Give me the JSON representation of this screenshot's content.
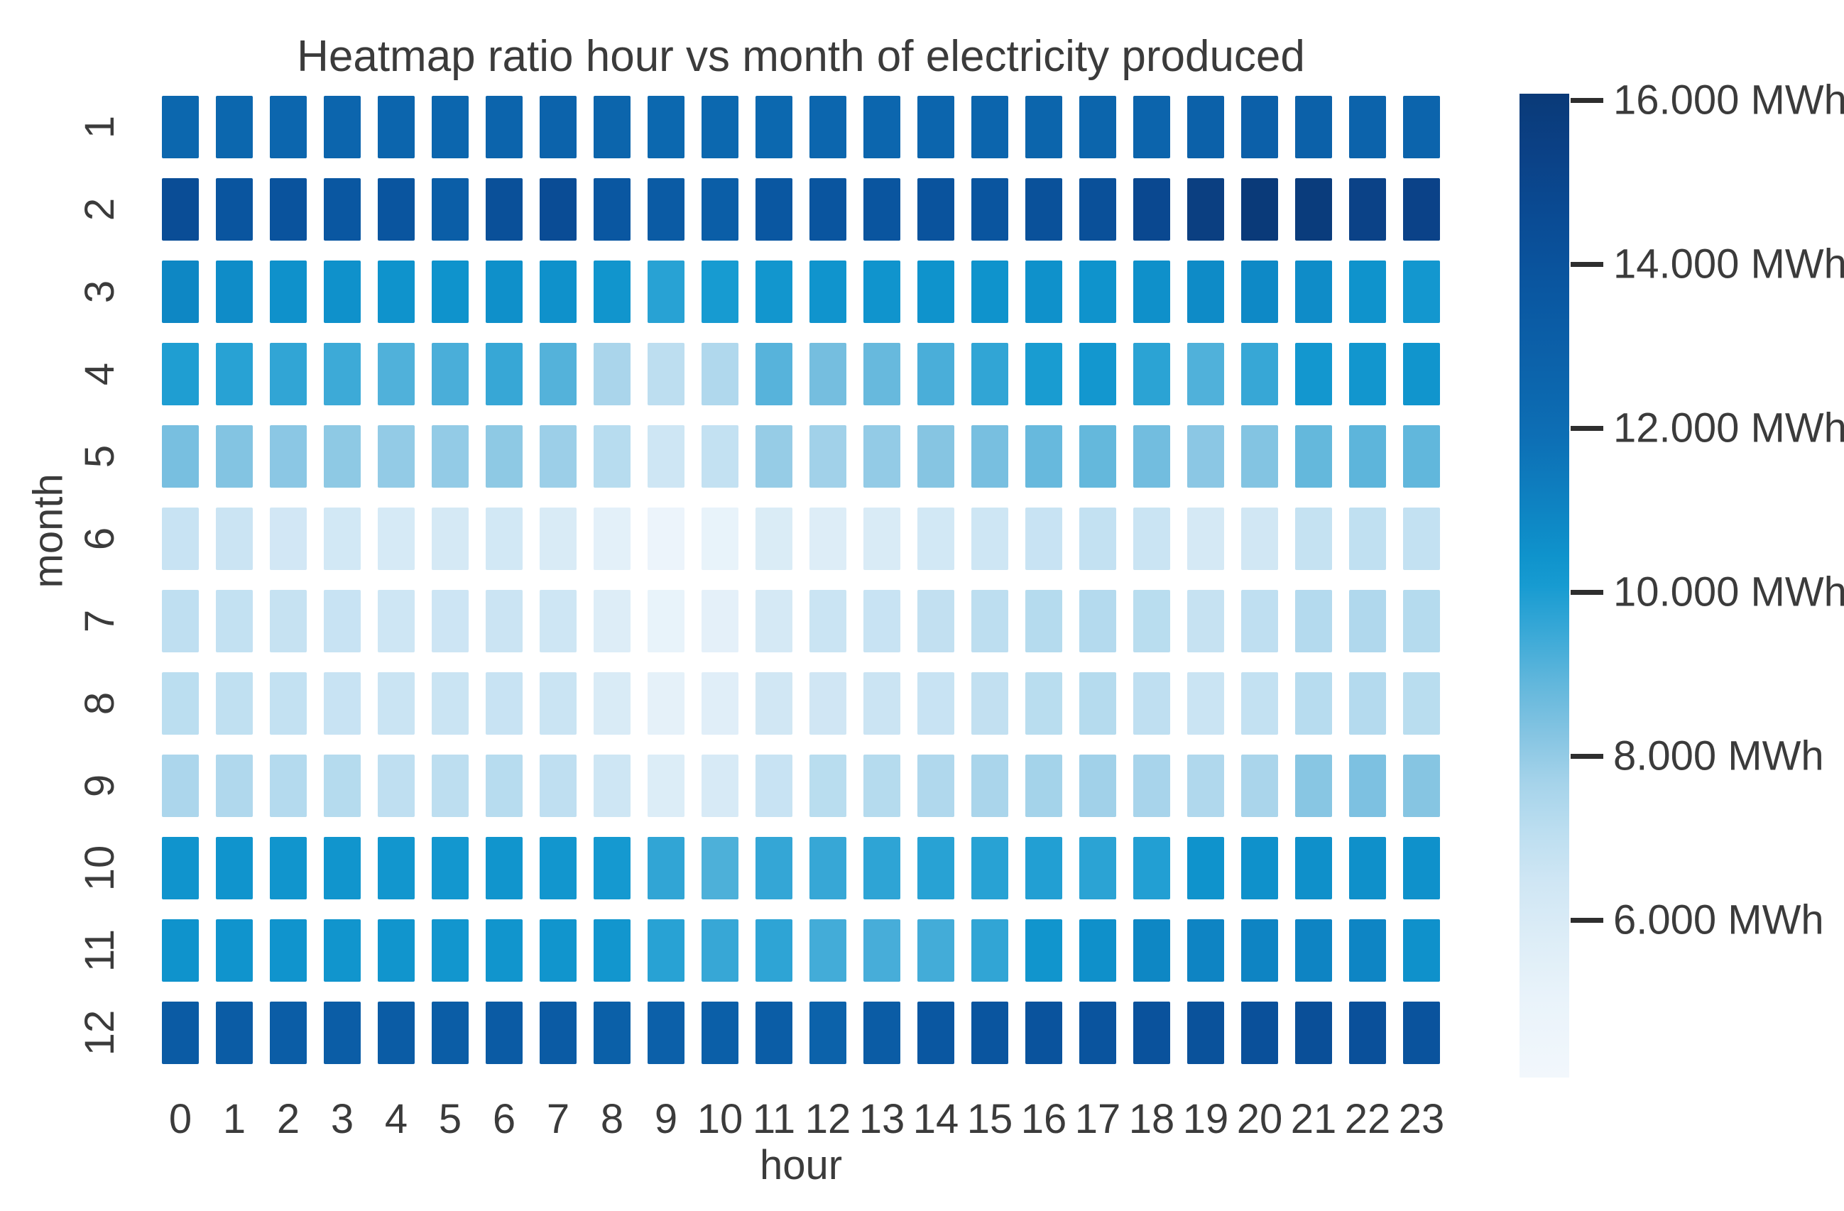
{
  "title": "Heatmap ratio hour vs month of electricity produced",
  "axes": {
    "x_label": "hour",
    "y_label": "month",
    "x_ticks": [
      "0",
      "1",
      "2",
      "3",
      "4",
      "5",
      "6",
      "7",
      "8",
      "9",
      "10",
      "11",
      "12",
      "13",
      "14",
      "15",
      "16",
      "17",
      "18",
      "19",
      "20",
      "21",
      "22",
      "23"
    ],
    "y_ticks": [
      "1",
      "2",
      "3",
      "4",
      "5",
      "6",
      "7",
      "8",
      "9",
      "10",
      "11",
      "12"
    ]
  },
  "colorbar": {
    "unit": "MWh",
    "tick_labels": [
      "16.000 MWh",
      "14.000 MWh",
      "12.000 MWh",
      "10.000 MWh",
      "8.000 MWh",
      "6.000 MWh"
    ],
    "tick_values": [
      16000,
      14000,
      12000,
      10000,
      8000,
      6000
    ],
    "vmin": 4080,
    "vmax": 16080,
    "colormap_stops": [
      [
        0.0,
        "#0a3a78"
      ],
      [
        0.06,
        "#0b4186"
      ],
      [
        0.13,
        "#0a4c95"
      ],
      [
        0.2,
        "#0a57a1"
      ],
      [
        0.28,
        "#0c63ab"
      ],
      [
        0.35,
        "#0d6fb5"
      ],
      [
        0.42,
        "#0e83c2"
      ],
      [
        0.47,
        "#0f93cc"
      ],
      [
        0.5,
        "#179bd1"
      ],
      [
        0.55,
        "#3ba9d7"
      ],
      [
        0.6,
        "#62b7dc"
      ],
      [
        0.65,
        "#84c4e2"
      ],
      [
        0.7,
        "#a5d3ea"
      ],
      [
        0.75,
        "#bcdef0"
      ],
      [
        0.8,
        "#cfe6f4"
      ],
      [
        0.86,
        "#ddedf7"
      ],
      [
        0.92,
        "#e9f3fa"
      ],
      [
        1.0,
        "#f2f7fc"
      ]
    ]
  },
  "chart_data": {
    "type": "heatmap",
    "title": "Heatmap ratio hour vs month of electricity produced",
    "xlabel": "hour",
    "ylabel": "month",
    "x": [
      0,
      1,
      2,
      3,
      4,
      5,
      6,
      7,
      8,
      9,
      10,
      11,
      12,
      13,
      14,
      15,
      16,
      17,
      18,
      19,
      20,
      21,
      22,
      23
    ],
    "y": [
      1,
      2,
      3,
      4,
      5,
      6,
      7,
      8,
      9,
      10,
      11,
      12
    ],
    "unit": "MWh",
    "legend_position": "right-colorbar",
    "value_range": [
      4080,
      16080
    ],
    "values": [
      [
        12450,
        12450,
        12500,
        12550,
        12550,
        12500,
        12650,
        12700,
        12600,
        12400,
        12350,
        12400,
        12500,
        12500,
        12550,
        12550,
        12600,
        12600,
        12650,
        12900,
        12950,
        12900,
        12700,
        12650
      ],
      [
        14450,
        13800,
        13950,
        13700,
        13850,
        13150,
        14250,
        14500,
        13650,
        13350,
        13100,
        13650,
        13850,
        13800,
        13950,
        13850,
        14150,
        14250,
        14800,
        15600,
        16050,
        15850,
        15300,
        15250
      ],
      [
        10900,
        10700,
        10500,
        10500,
        10450,
        10450,
        10550,
        10500,
        10350,
        9800,
        10100,
        10300,
        10400,
        10400,
        10450,
        10450,
        10500,
        10450,
        10550,
        10750,
        10800,
        10700,
        10450,
        10250
      ],
      [
        9950,
        9800,
        9650,
        9450,
        9150,
        9250,
        9550,
        9100,
        7550,
        7050,
        7400,
        9050,
        8550,
        8800,
        9250,
        9650,
        10050,
        10250,
        9750,
        9150,
        9550,
        10250,
        10300,
        10350
      ],
      [
        8500,
        8300,
        8150,
        8100,
        8000,
        8000,
        8100,
        7850,
        7200,
        6500,
        6850,
        7950,
        7750,
        8000,
        8250,
        8500,
        8800,
        8850,
        8600,
        8150,
        8300,
        8850,
        8950,
        8900
      ],
      [
        6700,
        6600,
        6350,
        6300,
        6100,
        6150,
        6300,
        5950,
        5400,
        4750,
        5100,
        5900,
        5750,
        5950,
        6300,
        6500,
        6700,
        6850,
        6650,
        6150,
        6400,
        6800,
        6950,
        6850
      ],
      [
        7000,
        6850,
        6750,
        6700,
        6500,
        6550,
        6600,
        6500,
        5750,
        5100,
        5350,
        6150,
        6650,
        6700,
        6900,
        7050,
        7250,
        7300,
        7150,
        6750,
        7000,
        7300,
        7400,
        7250
      ],
      [
        7100,
        6950,
        6850,
        6700,
        6650,
        6650,
        6700,
        6650,
        5950,
        5300,
        5600,
        6400,
        6450,
        6600,
        6700,
        6900,
        7150,
        7250,
        7000,
        6650,
        6850,
        7200,
        7300,
        7150
      ],
      [
        7500,
        7400,
        7300,
        7250,
        7000,
        7050,
        7200,
        7000,
        6500,
        5800,
        6050,
        6700,
        7150,
        7250,
        7400,
        7550,
        7700,
        7750,
        7600,
        7400,
        7550,
        8200,
        8400,
        8250
      ],
      [
        10400,
        10400,
        10350,
        10350,
        10300,
        10250,
        10350,
        10300,
        10150,
        9650,
        9200,
        9600,
        9550,
        9700,
        9800,
        9800,
        9900,
        9750,
        9900,
        10450,
        10500,
        10550,
        10550,
        10500
      ],
      [
        10450,
        10400,
        10400,
        10350,
        10350,
        10300,
        10350,
        10350,
        10300,
        9800,
        9550,
        9700,
        9350,
        9300,
        9350,
        9650,
        10350,
        10550,
        10900,
        11000,
        11000,
        11000,
        10950,
        10500
      ],
      [
        13350,
        13250,
        13200,
        13200,
        13250,
        13200,
        13400,
        13350,
        13000,
        12950,
        13050,
        13200,
        12800,
        13250,
        13700,
        13850,
        13950,
        13900,
        14050,
        14100,
        14200,
        14300,
        14200,
        13950
      ]
    ]
  }
}
